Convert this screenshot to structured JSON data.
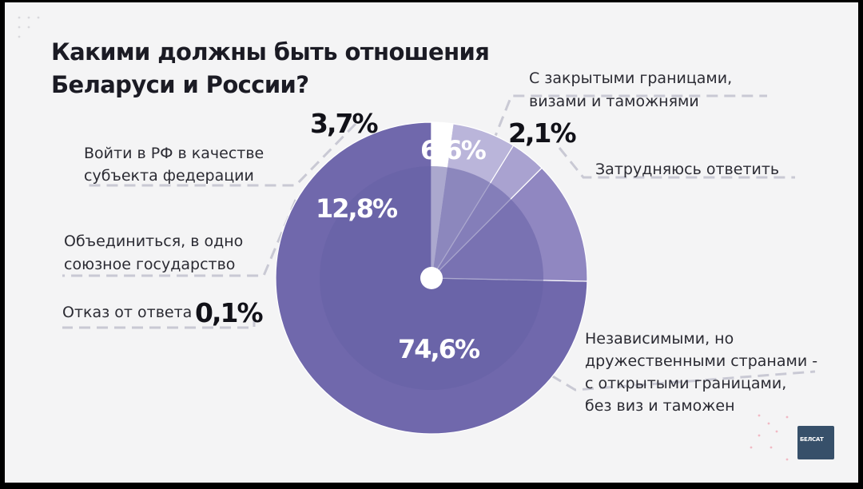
{
  "title": {
    "line1": "Какими должны быть отношения",
    "line2": "Беларуси и России?"
  },
  "chart_data": {
    "type": "pie",
    "title": "Какими должны быть отношения Беларуси и России?",
    "slices": [
      {
        "label": "Независимыми, но дружественными странами - с открытыми границами, без виз и таможен",
        "value": 74.6,
        "display": "74,6%",
        "color": "#7068ac"
      },
      {
        "label": "Объединиться, в одно союзное государство",
        "value": 12.8,
        "display": "12,8%",
        "color": "#9087c1"
      },
      {
        "label": "Войти в РФ в качестве субъекта федерации",
        "value": 3.7,
        "display": "3,7%",
        "color": "#a9a2d0"
      },
      {
        "label": "С закрытыми границами, визами и таможнями",
        "value": 6.6,
        "display": "6,6%",
        "color": "#bab5da"
      },
      {
        "label": "Затрудняюсь ответить",
        "value": 2.1,
        "display": "2,1%",
        "color": "#ffffff"
      },
      {
        "label": "Отказ от ответа",
        "value": 0.1,
        "display": "0,1%",
        "color": "#ffffff"
      }
    ]
  },
  "labels": {
    "independent": [
      "Независимыми, но",
      "дружественными странами -",
      "с открытыми границами,",
      "без виз и таможен"
    ],
    "union": [
      "Объединиться, в одно",
      "союзное государство"
    ],
    "subject": [
      "Войти в РФ в качестве",
      "субъекта федерации"
    ],
    "closed": [
      "С закрытыми границами,",
      "визами и таможнями"
    ],
    "unsure": "Затрудняюсь ответить",
    "refuse": "Отказ от ответа"
  },
  "logo": "БЕЛСАТ"
}
